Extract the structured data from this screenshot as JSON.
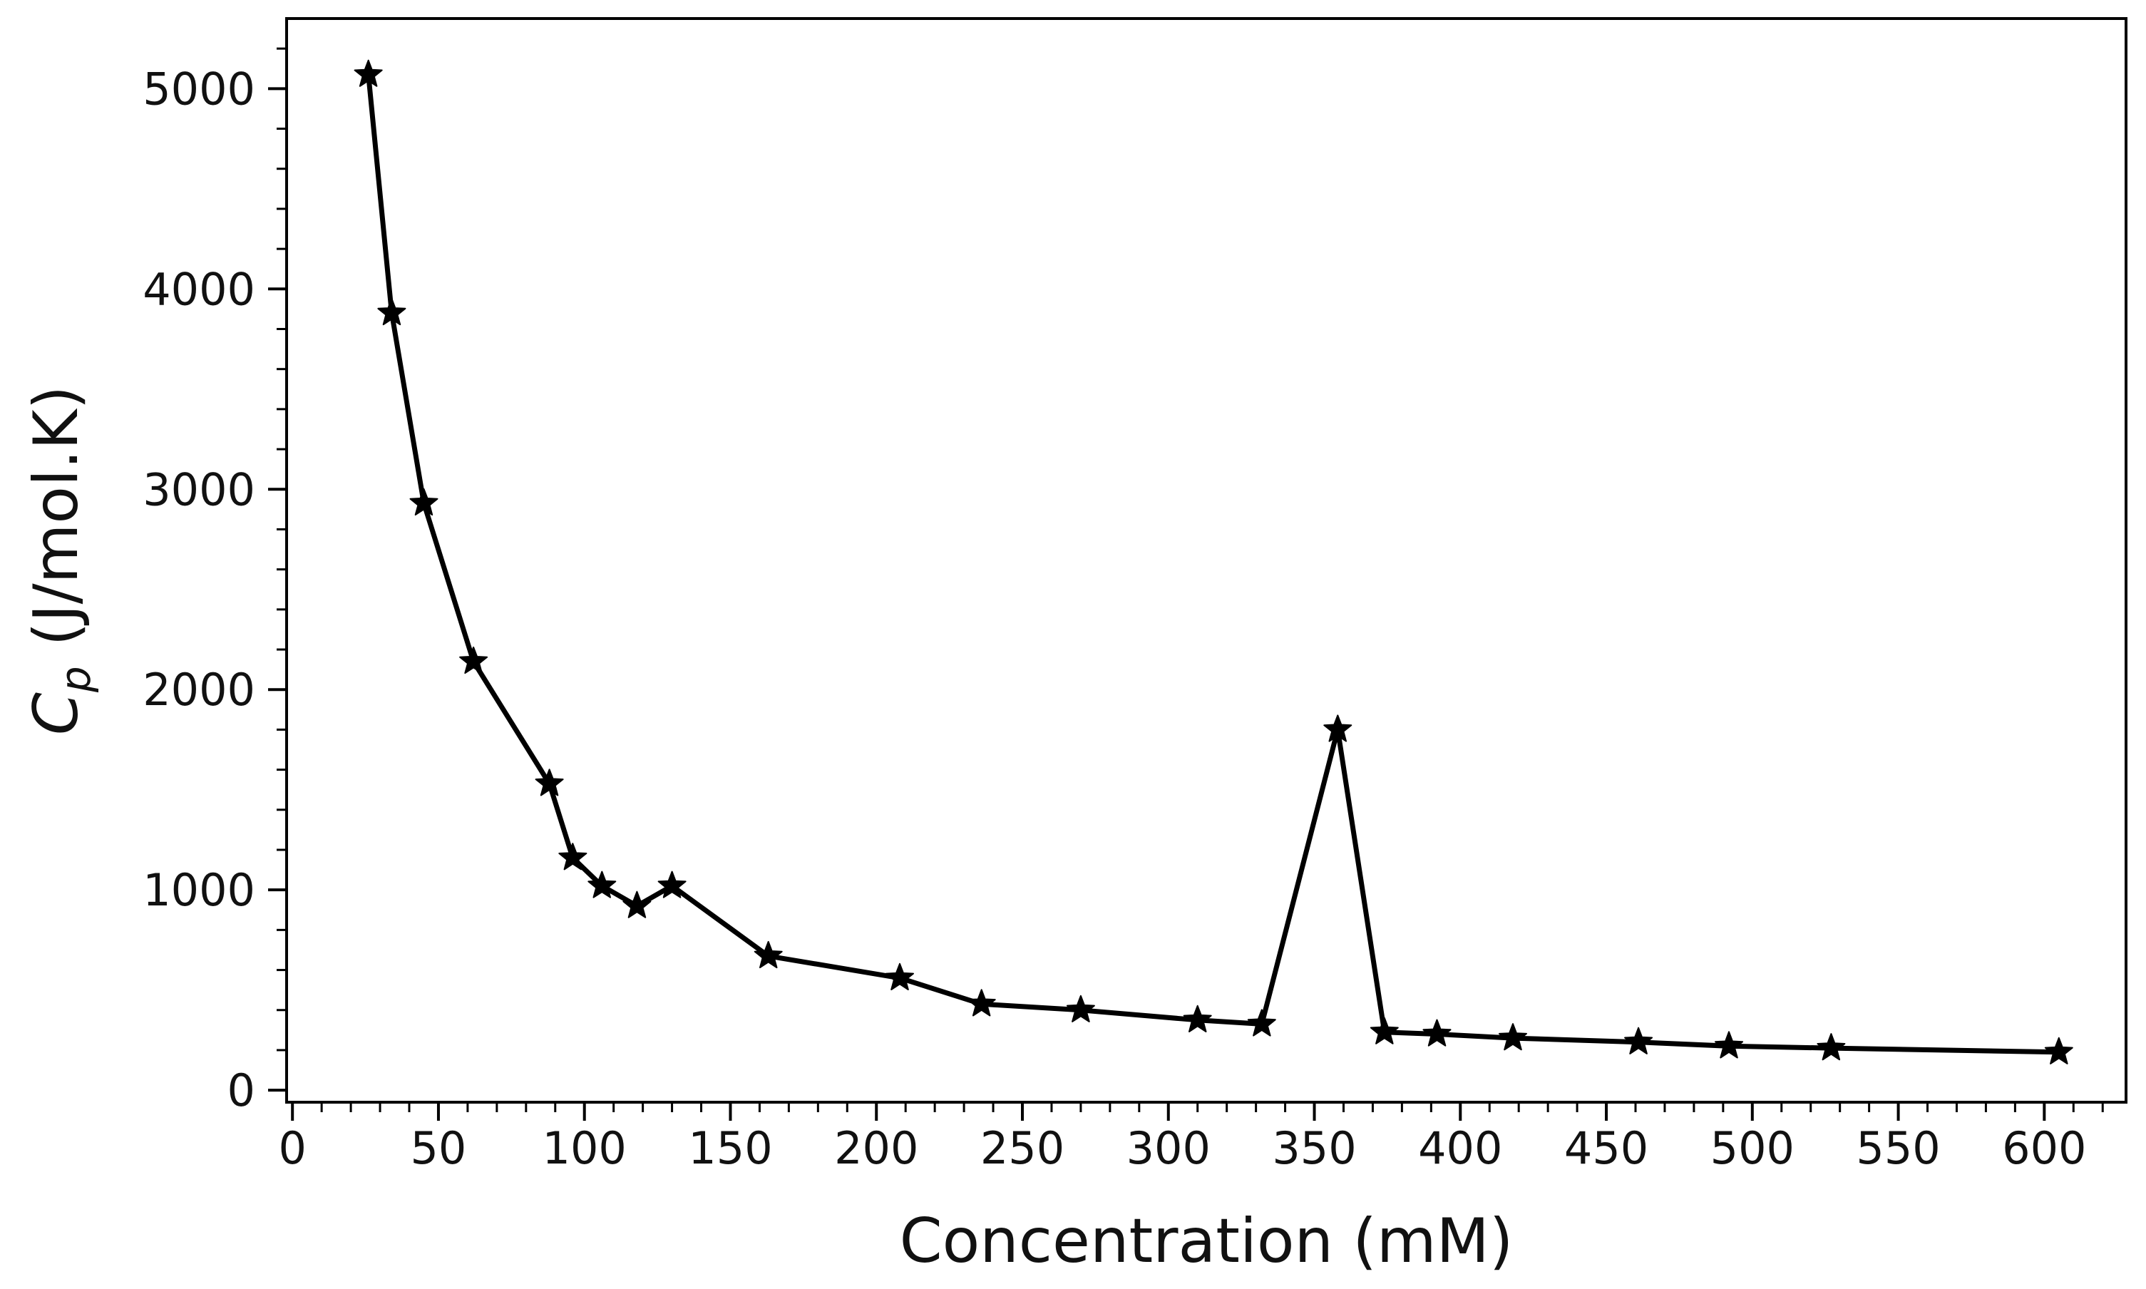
{
  "chart_data": {
    "type": "line",
    "title": "",
    "xlabel": "Concentration (mM)",
    "ylabel": {
      "symbol": "C",
      "subscript": "p",
      "units": "(J/mol.K)"
    },
    "xlim": [
      -2,
      628
    ],
    "ylim": [
      -60,
      5350
    ],
    "xticks": [
      0,
      50,
      100,
      150,
      200,
      250,
      300,
      350,
      400,
      450,
      500,
      550,
      600
    ],
    "xtick_labels": [
      "0",
      "50",
      "100",
      "150",
      "200",
      "250",
      "300",
      "350",
      "400",
      "450",
      "500",
      "550",
      "600"
    ],
    "x_minor_step": 10,
    "yticks": [
      0,
      1000,
      2000,
      3000,
      4000,
      5000
    ],
    "ytick_labels": [
      "0",
      "1000",
      "2000",
      "3000",
      "4000",
      "5000"
    ],
    "y_minor_step": 200,
    "grid": false,
    "series": [
      {
        "name": "Cp",
        "color": "#000000",
        "marker": "star",
        "x": [
          26,
          34,
          45,
          62,
          88,
          96,
          106,
          118,
          130,
          163,
          208,
          236,
          270,
          310,
          332,
          358,
          374,
          392,
          418,
          461,
          492,
          527,
          605
        ],
        "y": [
          5070,
          3880,
          2930,
          2140,
          1530,
          1160,
          1020,
          920,
          1020,
          670,
          560,
          430,
          400,
          350,
          330,
          1800,
          290,
          280,
          260,
          240,
          220,
          210,
          190
        ]
      }
    ]
  }
}
